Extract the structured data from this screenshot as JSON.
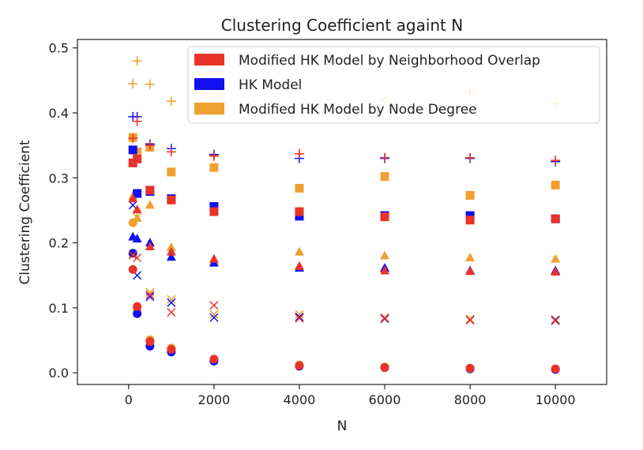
{
  "chart_data": {
    "type": "scatter",
    "title": "Clustering Coefficient againt N",
    "xlabel": "N",
    "ylabel": "Clustering Coefficient",
    "xlim": [
      -1200,
      11200
    ],
    "ylim": [
      -0.018,
      0.513
    ],
    "xticks": [
      0,
      2000,
      4000,
      6000,
      8000,
      10000
    ],
    "xtick_labels": [
      "0",
      "2000",
      "4000",
      "6000",
      "8000",
      "10000"
    ],
    "yticks": [
      0.0,
      0.1,
      0.2,
      0.3,
      0.4,
      0.5
    ],
    "ytick_labels": [
      "0.0",
      "0.1",
      "0.2",
      "0.3",
      "0.4",
      "0.5"
    ],
    "grid": false,
    "legend_position": "top-right",
    "x": [
      100,
      200,
      500,
      1000,
      2000,
      4000,
      6000,
      8000,
      10000
    ],
    "series": [
      {
        "name": "Modified HK Model by Neighborhood Overlap",
        "color": "#e8332a",
        "marker_sets": [
          {
            "marker": "plus",
            "y": [
              0.361,
              0.387,
              0.35,
              0.34,
              0.334,
              0.337,
              0.331,
              0.331,
              0.327
            ]
          },
          {
            "marker": "square",
            "y": [
              0.323,
              0.329,
              0.281,
              0.266,
              0.248,
              0.248,
              0.24,
              0.235,
              0.237
            ]
          },
          {
            "marker": "triangle",
            "y": [
              0.268,
              0.251,
              0.194,
              0.186,
              0.175,
              0.164,
              0.157,
              0.156,
              0.155
            ]
          },
          {
            "marker": "x",
            "y": [
              0.181,
              0.177,
              0.12,
              0.093,
              0.104,
              0.084,
              0.084,
              0.081,
              0.08
            ]
          },
          {
            "marker": "circle",
            "y": [
              0.159,
              0.102,
              0.048,
              0.036,
              0.021,
              0.011,
              0.008,
              0.007,
              0.006
            ]
          }
        ]
      },
      {
        "name": "HK Model",
        "color": "#1010f0",
        "marker_sets": [
          {
            "marker": "plus",
            "y": [
              0.394,
              0.394,
              0.352,
              0.345,
              0.336,
              0.33,
              0.33,
              0.33,
              0.325
            ]
          },
          {
            "marker": "square",
            "y": [
              0.343,
              0.276,
              0.279,
              0.268,
              0.256,
              0.241,
              0.242,
              0.242,
              0.237
            ]
          },
          {
            "marker": "triangle",
            "y": [
              0.209,
              0.206,
              0.2,
              0.178,
              0.169,
              0.161,
              0.161,
              0.157,
              0.157
            ]
          },
          {
            "marker": "x",
            "y": [
              0.258,
              0.15,
              0.117,
              0.108,
              0.085,
              0.086,
              0.083,
              0.081,
              0.081
            ]
          },
          {
            "marker": "circle",
            "y": [
              0.184,
              0.091,
              0.041,
              0.032,
              0.018,
              0.01,
              0.008,
              0.006,
              0.005
            ]
          }
        ]
      },
      {
        "name": "Modified HK Model by Node Degree",
        "color": "#f0a030",
        "marker_sets": [
          {
            "marker": "plus",
            "y": [
              0.445,
              0.48,
              0.444,
              0.418,
              0.333,
              0.337,
              0.42,
              0.432,
              0.415
            ]
          },
          {
            "marker": "square",
            "y": [
              0.362,
              0.34,
              0.347,
              0.309,
              0.316,
              0.284,
              0.302,
              0.273,
              0.289
            ]
          },
          {
            "marker": "triangle",
            "y": [
              0.272,
              0.238,
              0.258,
              0.193,
              0.172,
              0.186,
              0.18,
              0.177,
              0.175
            ]
          },
          {
            "marker": "x",
            "y": [
              0.183,
              0.239,
              0.124,
              0.113,
              0.09,
              0.09,
              0.085,
              0.083,
              0.082
            ]
          },
          {
            "marker": "circle",
            "y": [
              0.231,
              0.098,
              0.051,
              0.038,
              0.018,
              0.012,
              0.009,
              0.007,
              0.006
            ]
          }
        ]
      }
    ]
  }
}
